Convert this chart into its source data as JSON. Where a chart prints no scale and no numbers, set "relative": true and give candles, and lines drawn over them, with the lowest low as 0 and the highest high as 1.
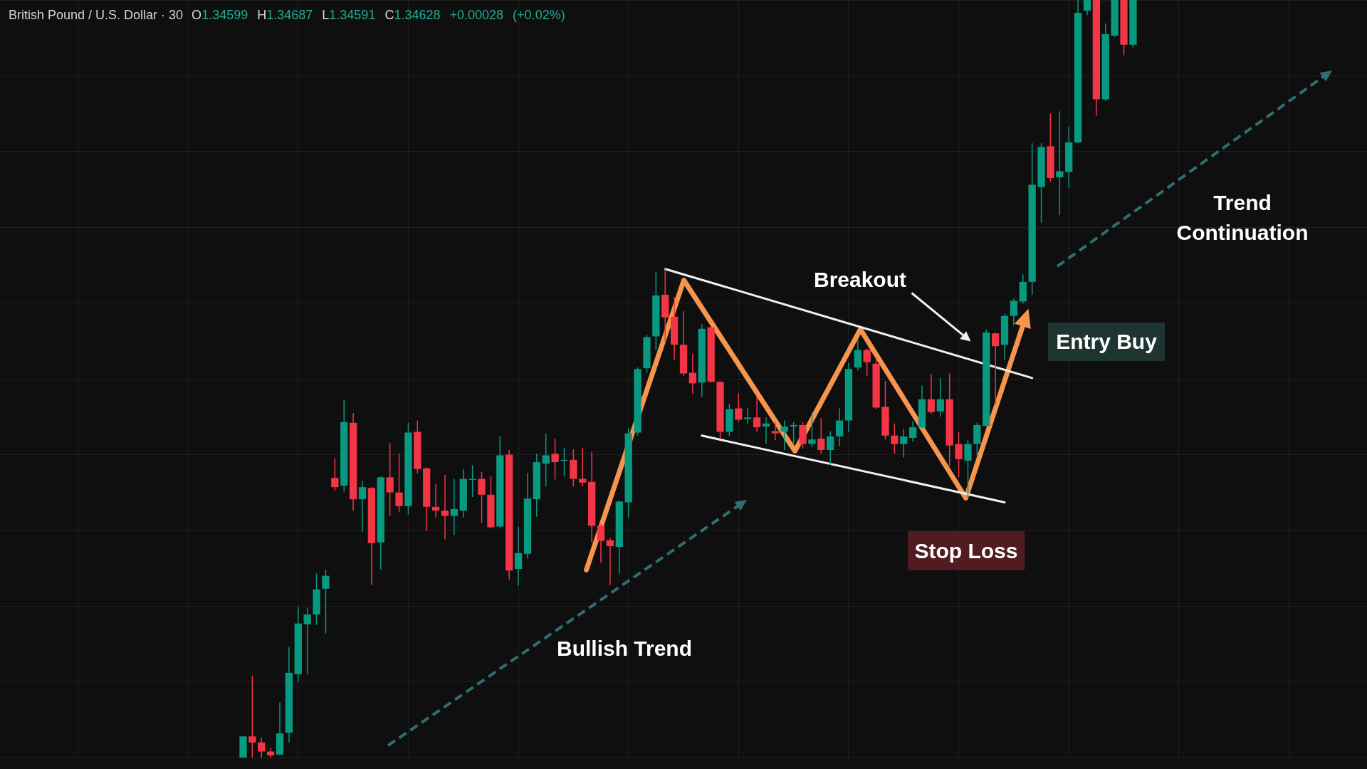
{
  "chart_data": {
    "type": "candlestick",
    "title": "British Pound / U.S. Dollar · 30",
    "subtitle": "O1.34599 H1.34687 L1.34591 C1.34628 +0.00028 (+0.02%)",
    "relative": true,
    "grid": true,
    "marker": "none",
    "categories": [
      null,
      null,
      null,
      null,
      null,
      null,
      null,
      null,
      null,
      null,
      null,
      null,
      null,
      null,
      null,
      null,
      null,
      null,
      null,
      null,
      null,
      null,
      null,
      null,
      null,
      null,
      null,
      null,
      null,
      null,
      null,
      null,
      null,
      null,
      null,
      null,
      null,
      null,
      null,
      null,
      null,
      null,
      null,
      null,
      null,
      null,
      null,
      null,
      null,
      null,
      null,
      null,
      null,
      null,
      null,
      null,
      null,
      null,
      null,
      null,
      null,
      null,
      null,
      null,
      null,
      null,
      null,
      null,
      null,
      null,
      null,
      null,
      null,
      null,
      null,
      null,
      null,
      null,
      null,
      null,
      null,
      null,
      null,
      null,
      null,
      null,
      null,
      null,
      null,
      null,
      null,
      null,
      null,
      null,
      null,
      null,
      null,
      null,
      null,
      null,
      null,
      null,
      null,
      null,
      null,
      null,
      null,
      null,
      null,
      null,
      null,
      null,
      null,
      null,
      null,
      null,
      null,
      null,
      null,
      null,
      null,
      null,
      null,
      null,
      null,
      null,
      null,
      null,
      null,
      null,
      null,
      null,
      null,
      null,
      null,
      null,
      null,
      null,
      null,
      null,
      null,
      null,
      null,
      null,
      null,
      null,
      null,
      null,
      null
    ],
    "ohlc": [
      null,
      null,
      null,
      null,
      null,
      null,
      null,
      null,
      null,
      null,
      null,
      null,
      null,
      null,
      null,
      null,
      null,
      null,
      null,
      null,
      null,
      null,
      null,
      null,
      null,
      null,
      [
        0,
        0.028,
        0,
        0.028
      ],
      [
        0.028,
        0.108,
        0,
        0.02
      ],
      [
        0.02,
        0.026,
        0,
        0.008
      ],
      [
        0.008,
        0.013,
        0,
        0.003
      ],
      [
        0.004,
        0.073,
        0.004,
        0.032
      ],
      [
        0.033,
        0.146,
        0.02,
        0.112
      ],
      [
        0.11,
        0.199,
        0.1,
        0.177
      ],
      [
        0.176,
        0.198,
        0.11,
        0.189
      ],
      [
        0.189,
        0.243,
        0.175,
        0.222
      ],
      [
        0.223,
        0.248,
        0.164,
        0.24
      ],
      [
        0.369,
        0.395,
        0.352,
        0.357
      ],
      [
        0.359,
        0.472,
        0.351,
        0.443
      ],
      [
        0.442,
        0.455,
        0.326,
        0.341
      ],
      [
        0.341,
        0.365,
        0.298,
        0.357
      ],
      [
        0.356,
        0.357,
        0.228,
        0.283
      ],
      [
        0.284,
        0.371,
        0.248,
        0.37
      ],
      [
        0.37,
        0.415,
        0.319,
        0.35
      ],
      [
        0.35,
        0.401,
        0.324,
        0.332
      ],
      [
        0.332,
        0.442,
        0.321,
        0.429
      ],
      [
        0.43,
        0.445,
        0.375,
        0.381
      ],
      [
        0.382,
        0.383,
        0.299,
        0.331
      ],
      [
        0.331,
        0.361,
        0.317,
        0.326
      ],
      [
        0.326,
        0.373,
        0.288,
        0.319
      ],
      [
        0.319,
        0.368,
        0.294,
        0.328
      ],
      [
        0.326,
        0.381,
        0.317,
        0.368
      ],
      [
        0.367,
        0.386,
        0.344,
        0.368
      ],
      [
        0.368,
        0.377,
        0.31,
        0.347
      ],
      [
        0.347,
        0.371,
        0.303,
        0.304
      ],
      [
        0.305,
        0.424,
        0.303,
        0.399
      ],
      [
        0.4,
        0.406,
        0.235,
        0.247
      ],
      [
        0.249,
        0.305,
        0.227,
        0.27
      ],
      [
        0.269,
        0.376,
        0.263,
        0.342
      ],
      [
        0.341,
        0.401,
        0.318,
        0.39
      ],
      [
        0.388,
        0.428,
        0.358,
        0.399
      ],
      [
        0.401,
        0.421,
        0.367,
        0.39
      ],
      [
        0.392,
        0.409,
        0.371,
        0.393
      ],
      [
        0.393,
        0.407,
        0.358,
        0.368
      ],
      [
        0.368,
        0.409,
        0.358,
        0.363
      ],
      [
        0.364,
        0.404,
        0.284,
        0.306
      ],
      [
        0.306,
        0.308,
        0.257,
        0.286
      ],
      [
        0.287,
        0.29,
        0.228,
        0.279
      ],
      [
        0.278,
        0.339,
        0.243,
        0.338
      ],
      [
        0.337,
        0.435,
        0.317,
        0.428
      ],
      [
        0.429,
        0.515,
        0.425,
        0.513
      ],
      [
        0.514,
        0.558,
        0.508,
        0.555
      ],
      [
        0.556,
        0.641,
        0.538,
        0.61
      ],
      [
        0.611,
        0.646,
        0.549,
        0.581
      ],
      [
        0.582,
        0.608,
        0.525,
        0.545
      ],
      [
        0.545,
        0.589,
        0.504,
        0.507
      ],
      [
        0.508,
        0.533,
        0.48,
        0.494
      ],
      [
        0.495,
        0.572,
        0.476,
        0.566
      ],
      [
        0.568,
        0.57,
        0.495,
        0.496
      ],
      [
        0.496,
        0.497,
        0.42,
        0.43
      ],
      [
        0.43,
        0.467,
        0.424,
        0.46
      ],
      [
        0.461,
        0.481,
        0.443,
        0.446
      ],
      [
        0.447,
        0.461,
        0.441,
        0.449
      ],
      [
        0.449,
        0.476,
        0.43,
        0.436
      ],
      [
        0.437,
        0.449,
        0.414,
        0.441
      ],
      [
        0.431,
        0.443,
        0.419,
        0.428
      ],
      [
        0.43,
        0.445,
        0.406,
        0.437
      ],
      [
        0.437,
        0.443,
        0.414,
        0.439
      ],
      [
        0.439,
        0.443,
        0.408,
        0.414
      ],
      [
        0.414,
        0.455,
        0.41,
        0.42
      ],
      [
        0.421,
        0.448,
        0.401,
        0.406
      ],
      [
        0.406,
        0.431,
        0.386,
        0.424
      ],
      [
        0.424,
        0.461,
        0.411,
        0.445
      ],
      [
        0.445,
        0.521,
        0.43,
        0.513
      ],
      [
        0.515,
        0.551,
        0.511,
        0.538
      ],
      [
        0.538,
        0.54,
        0.504,
        0.522
      ],
      [
        0.52,
        0.527,
        0.46,
        0.462
      ],
      [
        0.463,
        0.497,
        0.42,
        0.425
      ],
      [
        0.425,
        0.441,
        0.401,
        0.414
      ],
      [
        0.414,
        0.434,
        0.396,
        0.424
      ],
      [
        0.422,
        0.444,
        0.417,
        0.436
      ],
      [
        0.436,
        0.491,
        0.434,
        0.473
      ],
      [
        0.473,
        0.506,
        0.454,
        0.456
      ],
      [
        0.457,
        0.501,
        0.45,
        0.473
      ],
      [
        0.473,
        0.507,
        0.385,
        0.412
      ],
      [
        0.414,
        0.43,
        0.37,
        0.394
      ],
      [
        0.392,
        0.419,
        0.343,
        0.414
      ],
      [
        0.414,
        0.442,
        0.399,
        0.439
      ],
      [
        0.438,
        0.565,
        0.437,
        0.561
      ],
      [
        0.56,
        0.561,
        0.466,
        0.543
      ],
      [
        0.545,
        0.586,
        0.525,
        0.583
      ],
      [
        0.583,
        0.606,
        0.57,
        0.603
      ],
      [
        0.602,
        0.638,
        0.599,
        0.628
      ],
      [
        0.628,
        0.811,
        0.611,
        0.756
      ],
      [
        0.753,
        0.811,
        0.706,
        0.806
      ],
      [
        0.807,
        0.85,
        0.76,
        0.765
      ],
      [
        0.766,
        0.853,
        0.716,
        0.774
      ],
      [
        0.773,
        0.833,
        0.752,
        0.812
      ],
      [
        0.812,
        1,
        0.811,
        0.983
      ],
      [
        0.986,
        1,
        0.98,
        1
      ],
      [
        1,
        1,
        0.847,
        0.869
      ],
      [
        0.869,
        0.969,
        0.867,
        0.955
      ],
      [
        0.953,
        1,
        0.951,
        1
      ],
      [
        1,
        1,
        0.927,
        0.941
      ],
      [
        0.941,
        1,
        0.937,
        1
      ],
      null,
      null,
      null,
      null,
      null,
      null,
      null,
      null,
      null,
      null,
      null,
      null,
      null,
      null,
      null,
      null,
      null,
      null,
      null,
      null,
      null,
      null,
      null,
      null,
      null
    ],
    "colors": [
      null,
      null,
      null,
      null,
      null,
      null,
      null,
      null,
      null,
      null,
      null,
      null,
      null,
      null,
      null,
      null,
      null,
      null,
      null,
      null,
      null,
      null,
      null,
      null,
      null,
      null,
      "#089981",
      "#f23645",
      "#f23645",
      "#f23645",
      "#089981",
      "#089981",
      "#089981",
      "#089981",
      "#089981",
      "#089981",
      "#f23645",
      "#089981",
      "#f23645",
      "#089981",
      "#f23645",
      "#089981",
      "#f23645",
      "#f23645",
      "#089981",
      "#f23645",
      "#f23645",
      "#f23645",
      "#f23645",
      "#089981",
      "#089981",
      "#089981",
      "#f23645",
      "#f23645",
      "#089981",
      "#f23645",
      "#089981",
      "#089981",
      "#089981",
      "#089981",
      "#f23645",
      "#089981",
      "#f23645",
      "#f23645",
      "#f23645",
      "#f23645",
      "#f23645",
      "#089981",
      "#089981",
      "#089981",
      "#089981",
      "#089981",
      "#f23645",
      "#f23645",
      "#f23645",
      "#f23645",
      "#089981",
      "#f23645",
      "#f23645",
      "#089981",
      "#f23645",
      "#089981",
      "#f23645",
      "#089981",
      "#f23645",
      "#089981",
      "#089981",
      "#f23645",
      "#089981",
      "#f23645",
      "#089981",
      "#089981",
      "#089981",
      "#089981",
      "#f23645",
      "#f23645",
      "#f23645",
      "#f23645",
      "#089981",
      "#089981",
      "#089981",
      "#f23645",
      "#089981",
      "#f23645",
      "#f23645",
      "#089981",
      "#089981",
      "#089981",
      "#f23645",
      "#089981",
      "#089981",
      "#089981",
      "#089981",
      "#089981",
      "#f23645",
      "#089981",
      "#089981",
      "#089981",
      "#089981",
      "#f23645",
      "#089981",
      "#089981",
      "#f23645",
      "#089981",
      null,
      null,
      null,
      null,
      null,
      null,
      null,
      null,
      null,
      null,
      null,
      null,
      null,
      null,
      null,
      null,
      null,
      null,
      null,
      null,
      null,
      null,
      null,
      null,
      null
    ],
    "series": [
      {
        "type": "line",
        "color": "#f0f0f0",
        "values": [
          null,
          null,
          null,
          null,
          null,
          null,
          null,
          null,
          null,
          null,
          null,
          null,
          null,
          null,
          null,
          null,
          null,
          null,
          null,
          null,
          null,
          null,
          null,
          null,
          null,
          null,
          null,
          null,
          null,
          null,
          null,
          null,
          null,
          null,
          null,
          null,
          null,
          null,
          null,
          null,
          null,
          null,
          null,
          null,
          null,
          null,
          null,
          null,
          null,
          null,
          null,
          null,
          null,
          null,
          null,
          null,
          null,
          null,
          null,
          null,
          null,
          null,
          null,
          null,
          null,
          null,
          null,
          null,
          null,
          null,
          null,
          null,
          0.645,
          null,
          null,
          null,
          null,
          null,
          null,
          null,
          null,
          null,
          null,
          null,
          null,
          null,
          null,
          null,
          null,
          null,
          null,
          null,
          null,
          null,
          null,
          null,
          null,
          null,
          null,
          null,
          null,
          null,
          null,
          null,
          null,
          null,
          null,
          null,
          null,
          null,
          null,
          null,
          0.501,
          null,
          null,
          null,
          null,
          null,
          null,
          null,
          null,
          null,
          null,
          null,
          null,
          null,
          null,
          null,
          null,
          null,
          null,
          null,
          null,
          null,
          null,
          null,
          null,
          null,
          null,
          null,
          null,
          null,
          null,
          null,
          null,
          null,
          null,
          null,
          null
        ]
      },
      {
        "type": "line",
        "color": "#f0f0f0",
        "values": [
          null,
          null,
          null,
          null,
          null,
          null,
          null,
          null,
          null,
          null,
          null,
          null,
          null,
          null,
          null,
          null,
          null,
          null,
          null,
          null,
          null,
          null,
          null,
          null,
          null,
          null,
          null,
          null,
          null,
          null,
          null,
          null,
          null,
          null,
          null,
          null,
          null,
          null,
          null,
          null,
          null,
          null,
          null,
          null,
          null,
          null,
          null,
          null,
          null,
          null,
          null,
          null,
          null,
          null,
          null,
          null,
          null,
          null,
          null,
          null,
          null,
          null,
          null,
          null,
          null,
          null,
          null,
          null,
          null,
          null,
          null,
          null,
          null,
          null,
          null,
          null,
          0.425,
          null,
          null,
          null,
          null,
          null,
          null,
          null,
          null,
          null,
          null,
          null,
          null,
          null,
          null,
          null,
          null,
          null,
          null,
          null,
          null,
          null,
          null,
          null,
          null,
          null,
          null,
          null,
          null,
          null,
          null,
          null,
          null,
          0.337,
          null,
          null,
          null,
          null,
          null,
          null,
          null,
          null,
          null,
          null,
          null,
          null,
          null,
          null,
          null,
          null,
          null,
          null,
          null,
          null,
          null,
          null,
          null,
          null,
          null,
          null,
          null,
          null,
          null,
          null,
          null,
          null,
          null,
          null,
          null,
          null,
          null,
          null,
          null
        ]
      }
    ],
    "annotations": [
      "Breakout",
      "Entry Buy",
      "Stop Loss",
      "Bullish Trend",
      "Trend Continuation"
    ]
  }
}
